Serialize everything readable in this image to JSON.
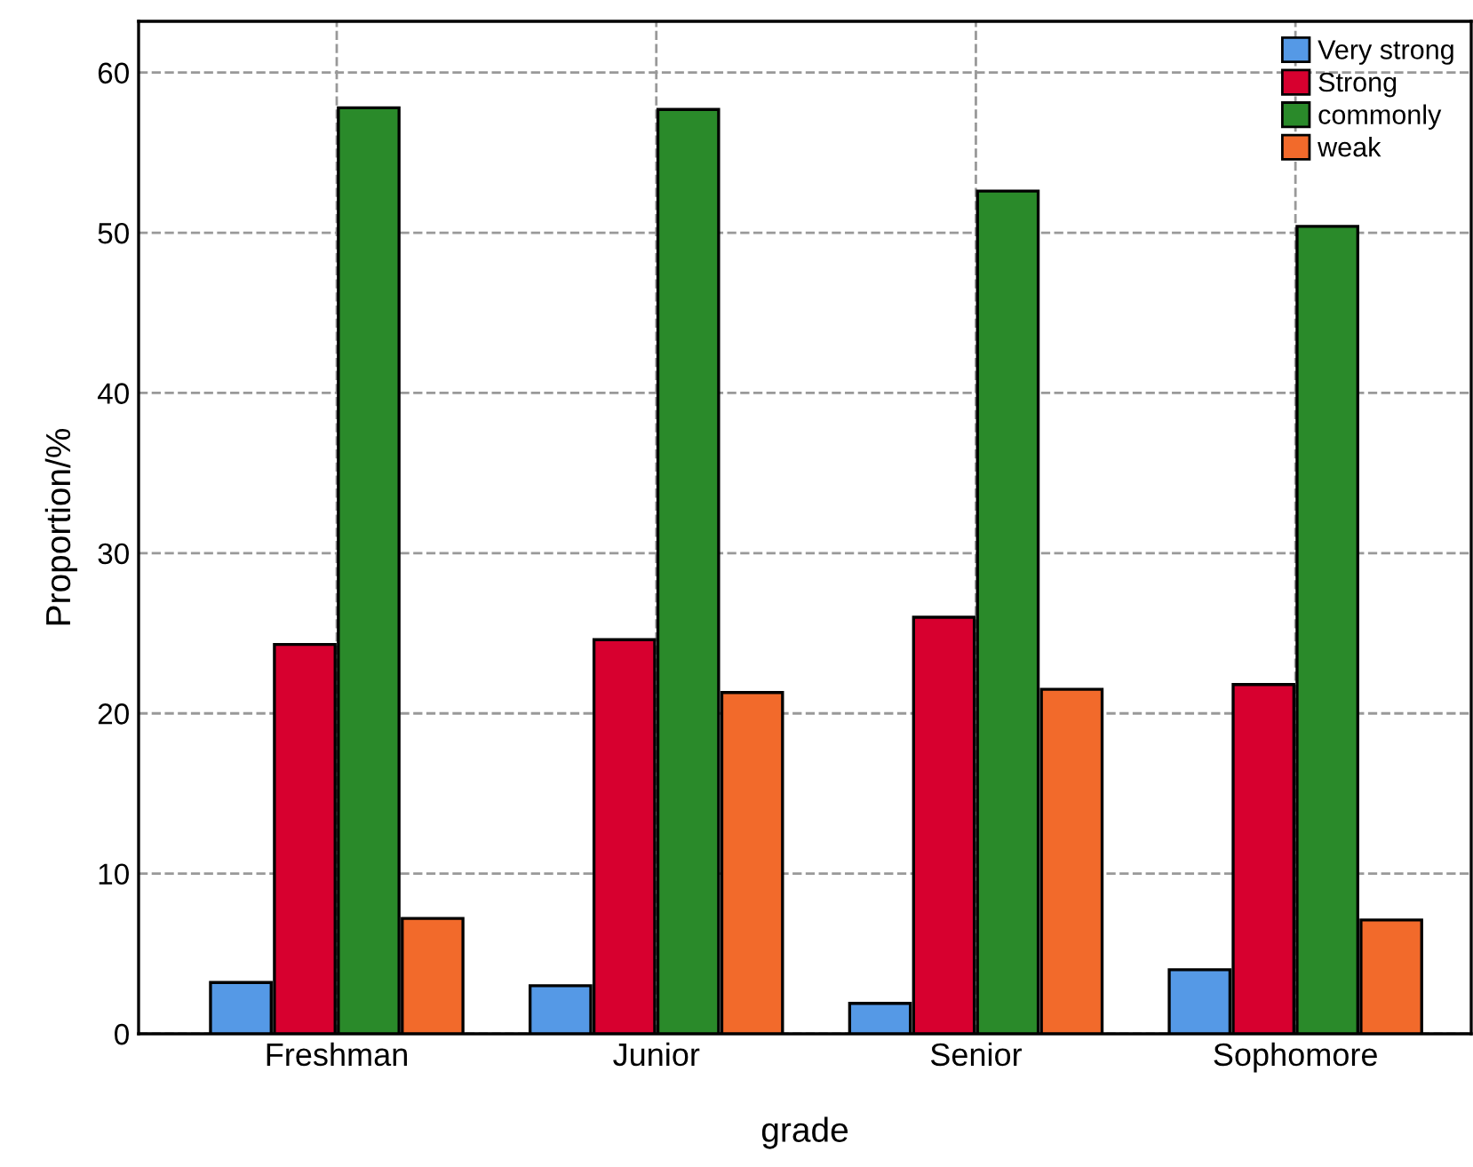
{
  "chart_data": {
    "type": "bar",
    "xlabel": "grade",
    "ylabel": "Proportion/%",
    "categories": [
      "Freshman",
      "Junior",
      "Senior",
      "Sophomore"
    ],
    "series": [
      {
        "name": "Very strong",
        "color": "#5599e6",
        "values": [
          3.2,
          3.0,
          1.9,
          4.0
        ]
      },
      {
        "name": "Strong",
        "color": "#d7002f",
        "values": [
          24.3,
          24.6,
          26.0,
          21.8
        ]
      },
      {
        "name": "commonly",
        "color": "#2a8a2a",
        "values": [
          57.8,
          57.7,
          52.6,
          50.4
        ]
      },
      {
        "name": "weak",
        "color": "#f26a2b",
        "values": [
          7.2,
          21.3,
          21.5,
          7.1
        ]
      }
    ],
    "ylim": [
      0,
      63.2
    ],
    "yticks": [
      0,
      10,
      20,
      30,
      40,
      50,
      60
    ],
    "grid": true,
    "legend": "top right"
  }
}
